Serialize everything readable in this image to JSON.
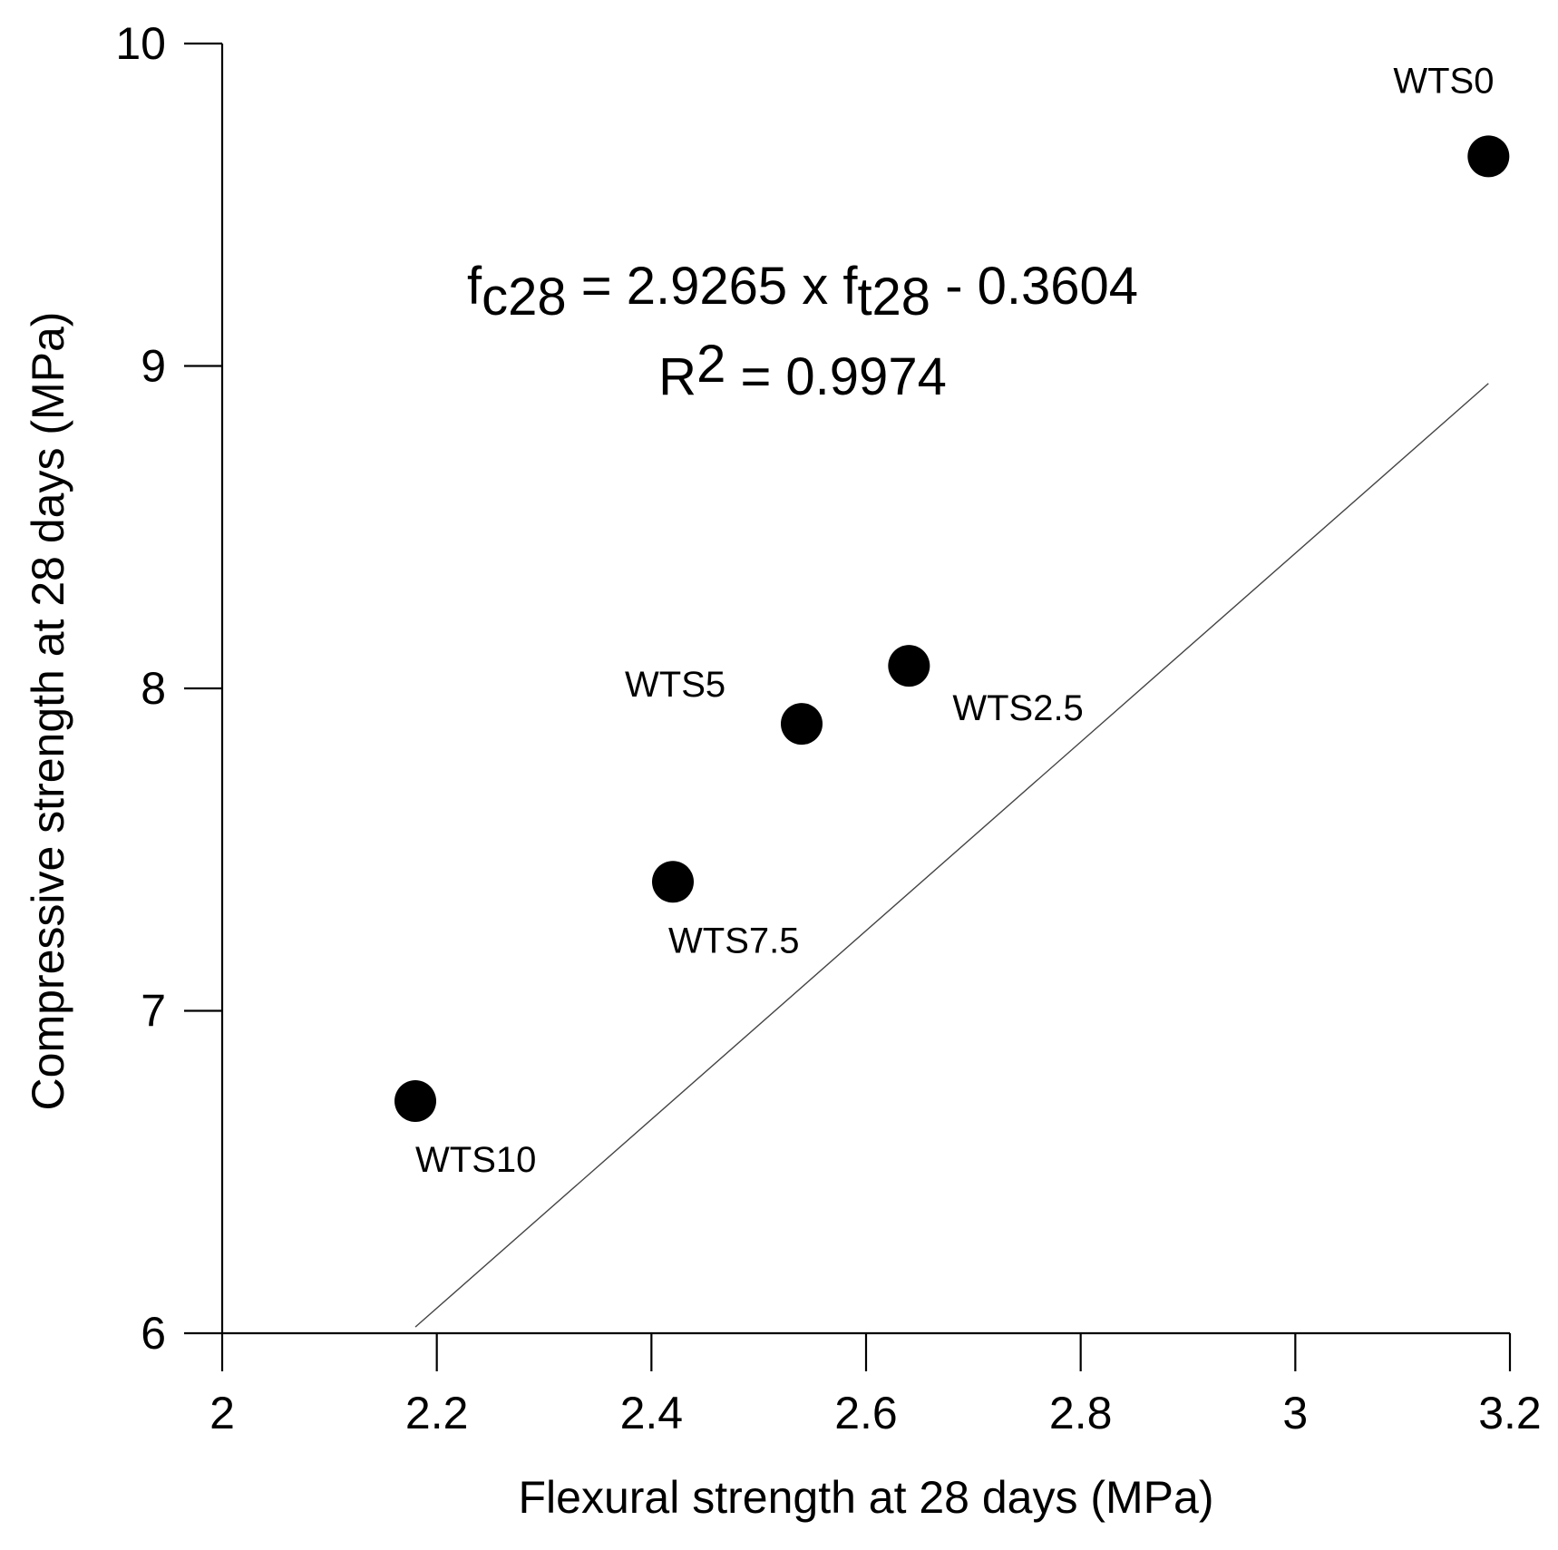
{
  "chart_data": {
    "type": "scatter",
    "title": "",
    "xlabel": "Flexural strength at 28 days (MPa)",
    "ylabel": "Compressive strength at 28 days (MPa)",
    "xlim": [
      2,
      3.2
    ],
    "ylim": [
      6,
      10
    ],
    "xticks": [
      2,
      2.2,
      2.4,
      2.6,
      2.8,
      3,
      3.2
    ],
    "xtick_labels": [
      "2",
      "2.2",
      "2.4",
      "2.6",
      "2.8",
      "3",
      "3.2"
    ],
    "yticks": [
      6,
      7,
      8,
      9,
      10
    ],
    "ytick_labels": [
      "6",
      "7",
      "8",
      "9",
      "10"
    ],
    "grid": false,
    "points": [
      {
        "label": "WTS0",
        "x": 3.18,
        "y": 9.65
      },
      {
        "label": "WTS2.5",
        "x": 2.64,
        "y": 8.07
      },
      {
        "label": "WTS5",
        "x": 2.54,
        "y": 7.89
      },
      {
        "label": "WTS7.5",
        "x": 2.42,
        "y": 7.4
      },
      {
        "label": "WTS10",
        "x": 2.18,
        "y": 6.72
      }
    ],
    "fit": {
      "slope": 2.9265,
      "intercept": -0.3604,
      "x_range": [
        2.18,
        3.18
      ]
    },
    "annotation": {
      "equation": {
        "lhs_base": "f",
        "lhs_sub": "c28",
        "middle": " = 2.9265 x f",
        "rhs_sub": "t28",
        "tail": " - 0.3604"
      },
      "r2": {
        "base": "R",
        "sup": "2",
        "tail": " = 0.9974"
      }
    }
  }
}
